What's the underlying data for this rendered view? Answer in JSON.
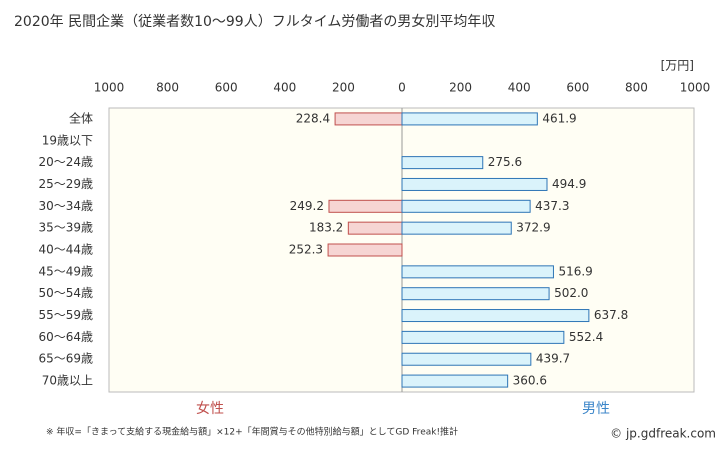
{
  "chart_data": {
    "type": "butterfly",
    "title": "2020年 民間企業（従業者数10～99人）フルタイム労働者の男女別平均年収",
    "unit": "[万円]",
    "categories": [
      "全体",
      "19歳以下",
      "20～24歳",
      "25～29歳",
      "30～34歳",
      "35～39歳",
      "40～44歳",
      "45～49歳",
      "50～54歳",
      "55～59歳",
      "60～64歳",
      "65～69歳",
      "70歳以上"
    ],
    "series": [
      {
        "name": "女性",
        "color": "#f6d5d3",
        "stroke": "#c0504d",
        "legend_color": "#c0504d",
        "side": "left",
        "values": [
          228.4,
          null,
          null,
          null,
          249.2,
          183.2,
          252.3,
          null,
          null,
          null,
          null,
          null,
          null
        ]
      },
      {
        "name": "男性",
        "color": "#daf3fb",
        "stroke": "#2e75b6",
        "legend_color": "#3c86c9",
        "side": "right",
        "values": [
          461.9,
          null,
          275.6,
          494.9,
          437.3,
          372.9,
          null,
          516.9,
          502.0,
          637.8,
          552.4,
          439.7,
          360.6
        ],
        "value_labels": [
          "461.9",
          null,
          "275.6",
          "494.9",
          "437.3",
          "372.9",
          null,
          "516.9",
          "502.0",
          "637.8",
          "552.4",
          "439.7",
          "360.6"
        ]
      }
    ],
    "xlim": [
      0,
      1000
    ],
    "xticks": [
      0,
      200,
      400,
      600,
      800,
      1000
    ],
    "grid": false,
    "footnote": "※ 年収=「きまって支給する現金給与額」×12+「年間賞与その他特別給与額」としてGD Freak!推計",
    "source": "© jp.gdfreak.com"
  }
}
